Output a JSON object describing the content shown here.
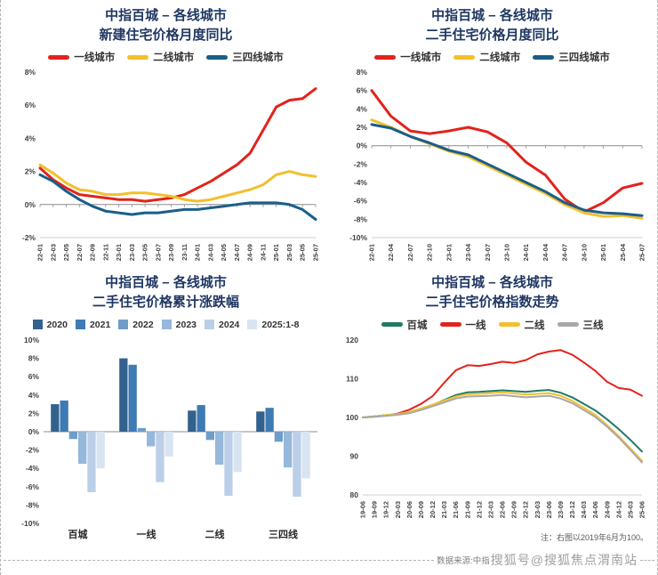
{
  "footer": {
    "source": "数据来源:中指",
    "watermark": "搜狐号@搜狐焦点渭南站"
  },
  "chart_data": [
    {
      "id": 0,
      "type": "line",
      "title_line1": "中指百城 – 各线城市",
      "title_line2": "新建住宅价格月度同比",
      "ylim": [
        -2,
        8
      ],
      "ytick": 2,
      "y_suffix": "%",
      "legend_position": "top",
      "grid": false,
      "categories": [
        "22-01",
        "22-03",
        "22-05",
        "22-07",
        "22-09",
        "22-11",
        "23-01",
        "23-03",
        "23-05",
        "23-07",
        "23-09",
        "23-11",
        "24-01",
        "24-03",
        "24-05",
        "24-07",
        "24-09",
        "24-11",
        "25-01",
        "25-03",
        "25-05",
        "25-07"
      ],
      "series": [
        {
          "name": "一线城市",
          "color": "#e2231c",
          "values": [
            2.2,
            1.5,
            1.0,
            0.6,
            0.5,
            0.4,
            0.3,
            0.3,
            0.2,
            0.3,
            0.4,
            0.6,
            1.0,
            1.4,
            1.9,
            2.4,
            3.1,
            4.5,
            5.9,
            6.3,
            6.4,
            7.0
          ]
        },
        {
          "name": "二线城市",
          "color": "#f2c02c",
          "values": [
            2.4,
            1.9,
            1.3,
            0.9,
            0.8,
            0.6,
            0.6,
            0.7,
            0.7,
            0.6,
            0.5,
            0.3,
            0.2,
            0.3,
            0.5,
            0.7,
            0.9,
            1.2,
            1.8,
            2.0,
            1.8,
            1.7
          ]
        },
        {
          "name": "三四线城市",
          "color": "#1a5e8a",
          "values": [
            1.8,
            1.4,
            0.8,
            0.3,
            -0.1,
            -0.4,
            -0.5,
            -0.6,
            -0.5,
            -0.5,
            -0.4,
            -0.3,
            -0.3,
            -0.2,
            -0.1,
            0.0,
            0.1,
            0.1,
            0.1,
            0.0,
            -0.3,
            -0.9
          ]
        }
      ]
    },
    {
      "id": 1,
      "type": "line",
      "title_line1": "中指百城 – 各线城市",
      "title_line2": "二手住宅价格月度同比",
      "ylim": [
        -10,
        8
      ],
      "ytick": 2,
      "y_suffix": "%",
      "legend_position": "top",
      "grid": false,
      "categories": [
        "22-01",
        "22-04",
        "22-07",
        "22-10",
        "23-01",
        "23-04",
        "23-07",
        "23-10",
        "24-01",
        "24-04",
        "24-07",
        "24-10",
        "25-01",
        "25-04",
        "25-07"
      ],
      "series": [
        {
          "name": "一线城市",
          "color": "#e2231c",
          "values": [
            6.0,
            3.2,
            1.6,
            1.3,
            1.6,
            2.0,
            1.5,
            0.3,
            -1.8,
            -3.2,
            -5.8,
            -7.2,
            -6.2,
            -4.6,
            -4.1
          ]
        },
        {
          "name": "二线城市",
          "color": "#f2c02c",
          "values": [
            2.8,
            2.0,
            1.0,
            0.2,
            -0.6,
            -1.2,
            -2.2,
            -3.2,
            -4.2,
            -5.2,
            -6.4,
            -7.3,
            -7.7,
            -7.6,
            -7.9
          ]
        },
        {
          "name": "三四线城市",
          "color": "#1a5e8a",
          "values": [
            2.3,
            1.9,
            1.0,
            0.3,
            -0.5,
            -1.0,
            -2.0,
            -3.0,
            -4.0,
            -5.0,
            -6.2,
            -7.0,
            -7.3,
            -7.4,
            -7.6
          ]
        }
      ]
    },
    {
      "id": 2,
      "type": "bar",
      "title_line1": "中指百城 – 各线城市",
      "title_line2": "二手住宅价格累计涨跌幅",
      "ylim": [
        -10,
        10
      ],
      "ytick": 2,
      "y_suffix": "%",
      "legend_position": "top",
      "grid": false,
      "categories": [
        "百城",
        "一线",
        "二线",
        "三四线"
      ],
      "series": [
        {
          "name": "2020",
          "color": "#32618e",
          "values": [
            3.0,
            8.0,
            2.3,
            2.2
          ]
        },
        {
          "name": "2021",
          "color": "#3e7ab3",
          "values": [
            3.4,
            7.3,
            2.9,
            2.6
          ]
        },
        {
          "name": "2022",
          "color": "#6f9dca",
          "values": [
            -0.8,
            0.4,
            -0.9,
            -1.1
          ]
        },
        {
          "name": "2023",
          "color": "#95b8db",
          "values": [
            -3.5,
            -1.6,
            -3.6,
            -3.9
          ]
        },
        {
          "name": "2024",
          "color": "#bccfe8",
          "values": [
            -6.6,
            -5.5,
            -7.0,
            -7.1
          ]
        },
        {
          "name": "2025:1-8",
          "color": "#d9e4f2",
          "values": [
            -4.0,
            -2.7,
            -4.4,
            -5.1
          ]
        }
      ]
    },
    {
      "id": 3,
      "type": "line",
      "title_line1": "中指百城 – 各线城市",
      "title_line2": "二手住宅价格指数走势",
      "note": "注：右图以2019年6月为100。",
      "ylim": [
        80,
        120
      ],
      "ytick": 10,
      "y_suffix": "",
      "legend_position": "top",
      "grid": false,
      "categories": [
        "19-06",
        "19-09",
        "19-12",
        "20-03",
        "20-06",
        "20-09",
        "20-12",
        "21-03",
        "21-06",
        "21-09",
        "21-12",
        "22-03",
        "22-06",
        "22-09",
        "22-12",
        "23-03",
        "23-06",
        "23-09",
        "23-12",
        "24-03",
        "24-06",
        "24-09",
        "24-12",
        "25-03",
        "25-06"
      ],
      "series": [
        {
          "name": "百城",
          "color": "#1f7a66",
          "values": [
            100,
            100.3,
            100.6,
            100.8,
            101.3,
            102.2,
            103.2,
            104.5,
            105.8,
            106.5,
            106.6,
            106.8,
            107.0,
            106.8,
            106.6,
            106.9,
            107.1,
            106.4,
            105.2,
            103.5,
            101.8,
            99.5,
            97.0,
            94.2,
            91.2
          ]
        },
        {
          "name": "一线",
          "color": "#e2231c",
          "values": [
            100,
            100.2,
            100.5,
            101.0,
            102.0,
            103.5,
            105.5,
            109.0,
            112.2,
            113.5,
            113.3,
            113.8,
            114.4,
            114.1,
            114.8,
            116.3,
            117.0,
            117.4,
            116.2,
            114.2,
            112.0,
            109.2,
            107.6,
            107.2,
            105.6
          ]
        },
        {
          "name": "二线",
          "color": "#f2c02c",
          "values": [
            100,
            100.3,
            100.6,
            100.9,
            101.4,
            102.3,
            103.3,
            104.4,
            105.4,
            106.0,
            106.1,
            106.3,
            106.5,
            106.2,
            105.9,
            106.1,
            106.3,
            105.6,
            104.3,
            102.5,
            100.6,
            98.0,
            95.2,
            92.0,
            88.8
          ]
        },
        {
          "name": "三线",
          "color": "#a8a8a8",
          "values": [
            100,
            100.2,
            100.4,
            100.7,
            101.1,
            101.9,
            102.9,
            103.9,
            104.9,
            105.4,
            105.5,
            105.6,
            105.8,
            105.5,
            105.2,
            105.4,
            105.6,
            104.9,
            103.7,
            101.9,
            100.1,
            97.6,
            94.8,
            91.6,
            88.4
          ]
        }
      ]
    }
  ]
}
